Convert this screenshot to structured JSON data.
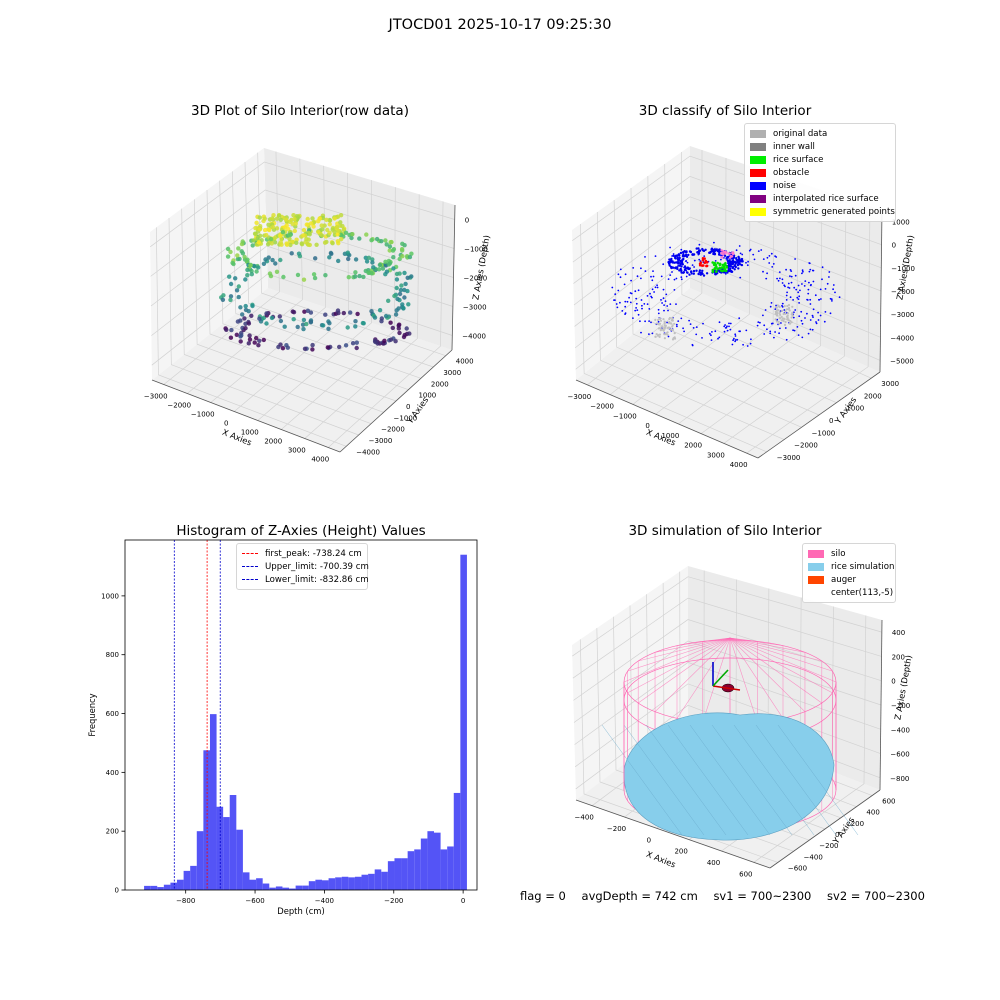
{
  "figure": {
    "title": "JTOCD01 2025-10-17 09:25:30"
  },
  "chart_data": [
    {
      "type": "scatter",
      "projection": "3d",
      "title": "3D Plot of Silo Interior(row data)",
      "xlabel": "X Axies",
      "ylabel": "Y Axies",
      "zlabel": "Z Axies (Depth)",
      "xticks": [
        "−3000",
        "−2000",
        "−1000",
        "0",
        "1000",
        "2000",
        "3000",
        "4000"
      ],
      "yticks": [
        "−4000",
        "−3000",
        "−2000",
        "−1000",
        "0",
        "1000",
        "2000",
        "3000",
        "4000"
      ],
      "zticks": [
        "−4000",
        "−3000",
        "−2000",
        "−1000",
        "0"
      ],
      "colormap": "viridis",
      "grid": true
    },
    {
      "type": "scatter",
      "projection": "3d",
      "title": "3D classify of Silo Interior",
      "xlabel": "X Axies",
      "ylabel": "Y Axies",
      "zlabel": "Z Axies (Depth)",
      "xticks": [
        "−3000",
        "−2000",
        "−1000",
        "0",
        "1000",
        "2000",
        "3000",
        "4000"
      ],
      "yticks": [
        "−3000",
        "−2000",
        "−1000",
        "0",
        "1000",
        "2000",
        "3000"
      ],
      "zticks": [
        "−5000",
        "−4000",
        "−3000",
        "−2000",
        "−1000",
        "0",
        "1000"
      ],
      "legend": [
        {
          "label": "original data",
          "color": "#b0b0b0"
        },
        {
          "label": "inner wall",
          "color": "#808080"
        },
        {
          "label": "rice surface",
          "color": "#00ee00"
        },
        {
          "label": "obstacle",
          "color": "#ff0000"
        },
        {
          "label": "noise",
          "color": "#0000ff"
        },
        {
          "label": "interpolated rice surface",
          "color": "#800080"
        },
        {
          "label": "symmetric generated points",
          "color": "#ffff00"
        }
      ],
      "legend_position": "top-right",
      "grid": true
    },
    {
      "type": "bar",
      "title": "Histogram of Z-Axies (Height) Values",
      "xlabel": "Depth (cm)",
      "ylabel": "Frequency",
      "xlim": [
        -975,
        40
      ],
      "ylim": [
        0,
        1190
      ],
      "xticks": [
        -800,
        -600,
        -400,
        -200,
        0
      ],
      "xtick_labels": [
        "−800",
        "−600",
        "−400",
        "−200",
        "0"
      ],
      "yticks": [
        0,
        200,
        400,
        600,
        800,
        1000
      ],
      "bin_width": 19,
      "bin_starts": [
        -920,
        -901,
        -882,
        -863,
        -844,
        -825,
        -806,
        -787,
        -768,
        -749,
        -730,
        -711,
        -692,
        -673,
        -654,
        -635,
        -616,
        -597,
        -578,
        -559,
        -540,
        -521,
        -502,
        -483,
        -464,
        -445,
        -426,
        -407,
        -388,
        -369,
        -350,
        -331,
        -312,
        -293,
        -274,
        -255,
        -236,
        -217,
        -198,
        -179,
        -160,
        -141,
        -122,
        -103,
        -84,
        -65,
        -46,
        -27,
        -8
      ],
      "values": [
        14,
        14,
        10,
        18,
        25,
        35,
        65,
        82,
        200,
        475,
        598,
        283,
        248,
        323,
        205,
        60,
        35,
        40,
        22,
        8,
        12,
        8,
        5,
        15,
        15,
        30,
        35,
        33,
        40,
        43,
        45,
        43,
        45,
        52,
        55,
        70,
        62,
        98,
        108,
        108,
        132,
        138,
        175,
        200,
        195,
        138,
        148,
        330,
        1140
      ],
      "bar_color": "#4b4bf5",
      "vlines": [
        {
          "label": "first_peak: -738.24 cm",
          "x": -738.24,
          "color": "#ff0000"
        },
        {
          "label": "Upper_limit: -700.39 cm",
          "x": -700.39,
          "color": "#0000cc"
        },
        {
          "label": "Lower_limit: -832.86 cm",
          "x": -832.86,
          "color": "#0000cc"
        }
      ],
      "legend_position": "top-center"
    },
    {
      "type": "surface",
      "projection": "3d",
      "title": "3D simulation of Silo Interior",
      "xlabel": "X Axies",
      "ylabel": "Y Axies",
      "zlabel": "Z Axies (Depth)",
      "xticks": [
        "−400",
        "−200",
        "0",
        "200",
        "400",
        "600"
      ],
      "yticks": [
        "−600",
        "−400",
        "−200",
        "0",
        "200",
        "400",
        "600"
      ],
      "zticks": [
        "−800",
        "−600",
        "−400",
        "−200",
        "0",
        "200",
        "400"
      ],
      "legend": [
        {
          "label": "silo",
          "color": "#ff69b4"
        },
        {
          "label": "rice simulation",
          "color": "#87ceeb"
        },
        {
          "label": "auger",
          "color": "#ff4500"
        },
        {
          "label": "center(113,-5)",
          "color": "#ffffff"
        }
      ],
      "legend_position": "top-right"
    }
  ],
  "footer": {
    "flag": "flag = 0",
    "avg_depth": "avgDepth = 742 cm",
    "sv1": "sv1 = 700~2300",
    "sv2": "sv2 = 700~2300"
  }
}
